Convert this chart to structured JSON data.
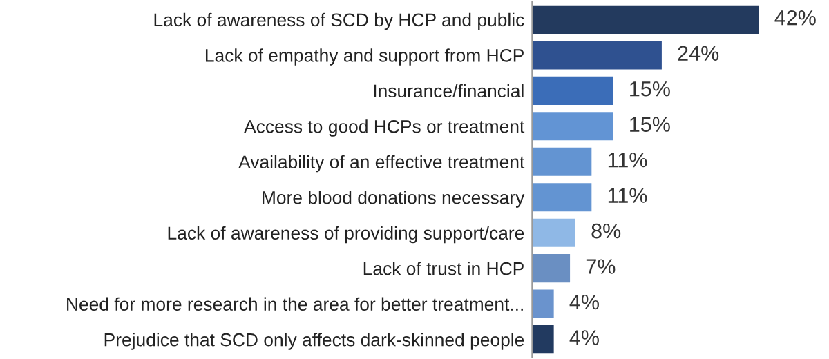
{
  "chart_data": {
    "type": "bar",
    "orientation": "horizontal",
    "categories": [
      "Lack of awareness of SCD by HCP and public",
      "Lack of empathy and support from HCP",
      "Insurance/financial",
      "Access to good HCPs or treatment",
      "Availability of an effective treatment",
      "More blood donations necessary",
      "Lack of awareness of providing support/care",
      "Lack of trust in HCP",
      "Need for more research in the area for better treatment...",
      "Prejudice that SCD only affects dark-skinned people"
    ],
    "values": [
      42,
      24,
      15,
      15,
      11,
      11,
      8,
      7,
      4,
      4
    ],
    "value_labels": [
      "42%",
      "24%",
      "15%",
      "15%",
      "11%",
      "11%",
      "8%",
      "7%",
      "4%",
      "4%"
    ],
    "colors": [
      "#233a5e",
      "#2f5190",
      "#3b6db8",
      "#6294d4",
      "#6394d2",
      "#6394d2",
      "#8fb8e6",
      "#6a8fc2",
      "#6a93cd",
      "#223a60"
    ],
    "tick_labels": "y",
    "grid": false,
    "legend": false
  }
}
